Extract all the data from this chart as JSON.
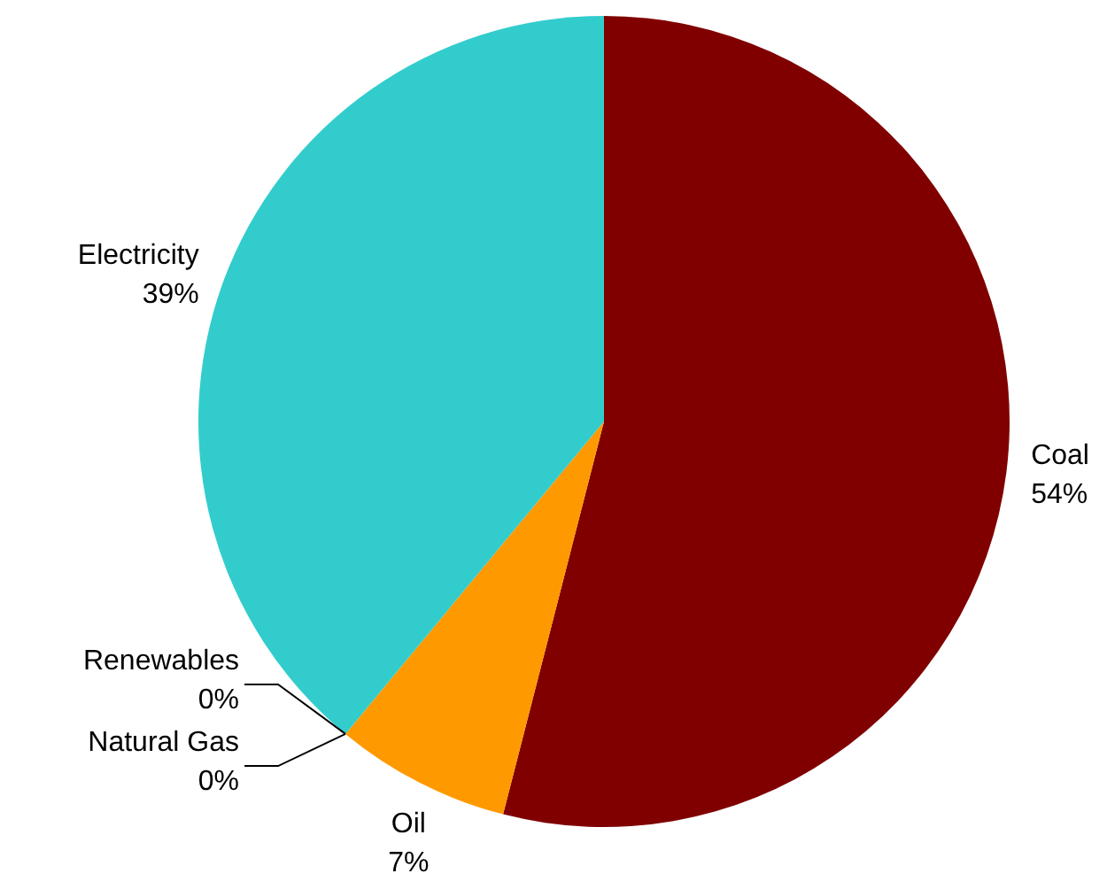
{
  "chart_data": {
    "type": "pie",
    "categories": [
      "Coal",
      "Oil",
      "Natural Gas",
      "Renewables",
      "Electricity"
    ],
    "values": [
      54,
      7,
      0,
      0,
      39
    ],
    "colors": [
      "#800000",
      "#ff9900",
      "#9999ff",
      "#66cc66",
      "#33cccc"
    ],
    "value_labels": [
      "54%",
      "7%",
      "0%",
      "0%",
      "39%"
    ]
  }
}
